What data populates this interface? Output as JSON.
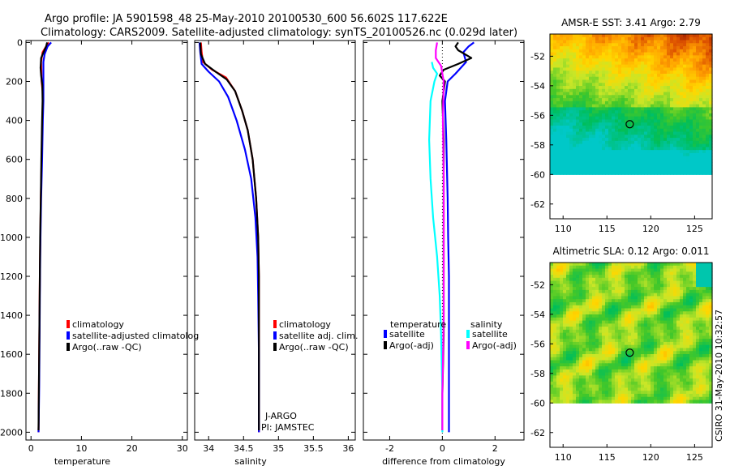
{
  "header": {
    "line1": "Argo profile: JA 5901598_48 25-May-2010 20100530_600 56.602S 117.622E",
    "line2": "Climatology: CARS2009. Satellite-adjusted climatology: synTS_20100526.nc (0.029d later)"
  },
  "chart_data": [
    {
      "type": "line",
      "xlabel": "temperature",
      "ylabel": "",
      "xlim": [
        -1,
        31
      ],
      "ylim": [
        2040,
        -10
      ],
      "xticks": [
        0,
        10,
        20,
        30
      ],
      "yticks": [
        0,
        200,
        400,
        600,
        800,
        1000,
        1200,
        1400,
        1600,
        1800,
        2000
      ],
      "legend": [
        "climatology",
        "satellite-adjusted climatolog",
        "Argo(..raw -QC)"
      ],
      "series": [
        {
          "name": "climatology",
          "color": "#ff0000",
          "x": [
            3.5,
            3.0,
            2.3,
            2.0,
            2.1,
            2.3,
            2.35,
            2.25,
            2.1,
            1.95,
            1.85,
            1.75,
            1.65,
            1.55,
            1.5
          ],
          "y": [
            0,
            20,
            50,
            100,
            200,
            250,
            300,
            400,
            600,
            800,
            1000,
            1200,
            1500,
            1800,
            2000
          ]
        },
        {
          "name": "satellite-adjusted climatology",
          "color": "#0000ff",
          "x": [
            4.0,
            3.3,
            2.7,
            2.45,
            2.45,
            2.45,
            2.35,
            2.2,
            2.0,
            1.88,
            1.78,
            1.7,
            1.6,
            1.5
          ],
          "y": [
            0,
            20,
            60,
            100,
            200,
            300,
            400,
            600,
            800,
            1000,
            1200,
            1500,
            1800,
            2000
          ]
        },
        {
          "name": "Argo(..raw -QC)",
          "color": "#000000",
          "x": [
            3.2,
            3.0,
            2.5,
            2.0,
            1.9,
            2.0,
            2.25,
            2.3,
            2.2,
            2.05,
            1.95,
            1.82,
            1.72,
            1.62,
            1.5
          ],
          "y": [
            0,
            20,
            50,
            80,
            130,
            170,
            220,
            300,
            400,
            600,
            800,
            1000,
            1300,
            1600,
            1990
          ]
        }
      ]
    },
    {
      "type": "line",
      "xlabel": "salinity",
      "ylabel": "",
      "xlim": [
        33.8,
        36.1
      ],
      "ylim": [
        2040,
        -10
      ],
      "xticks": [
        34,
        34.5,
        35,
        35.5,
        36
      ],
      "legend": [
        "climatology",
        "satellite adj. clim.",
        "Argo(..raw -QC)"
      ],
      "annotation": [
        "J-ARGO",
        "PI: JAMSTEC"
      ],
      "series": [
        {
          "name": "climatology",
          "color": "#ff0000",
          "x": [
            33.89,
            33.9,
            33.92,
            34.05,
            34.25,
            34.38,
            34.48,
            34.56,
            34.63,
            34.68,
            34.71,
            34.72,
            34.72,
            34.72,
            34.72
          ],
          "y": [
            0,
            50,
            100,
            140,
            180,
            250,
            350,
            450,
            600,
            800,
            1000,
            1200,
            1400,
            1700,
            2000
          ]
        },
        {
          "name": "satellite adj. clim.",
          "color": "#0000ff",
          "x": [
            33.87,
            33.88,
            33.9,
            34.0,
            34.15,
            34.28,
            34.4,
            34.52,
            34.61,
            34.67,
            34.7,
            34.71,
            34.72,
            34.72
          ],
          "y": [
            0,
            50,
            110,
            150,
            200,
            280,
            400,
            550,
            700,
            900,
            1100,
            1300,
            1600,
            2000
          ]
        },
        {
          "name": "Argo(..raw -QC)",
          "color": "#000000",
          "x": [
            33.88,
            33.89,
            33.95,
            34.1,
            34.26,
            34.38,
            34.48,
            34.56,
            34.63,
            34.68,
            34.71,
            34.72,
            34.72,
            34.72,
            34.72
          ],
          "y": [
            0,
            60,
            110,
            150,
            190,
            250,
            350,
            450,
            600,
            800,
            1000,
            1200,
            1400,
            1700,
            1990
          ]
        }
      ]
    },
    {
      "type": "line",
      "xlabel": "difference from climatology",
      "ylabel": "",
      "xlim": [
        -3.0,
        3.1
      ],
      "ylim": [
        2040,
        -10
      ],
      "xticks": [
        -2,
        0,
        2
      ],
      "legend_titles": [
        "temperature",
        "salinity"
      ],
      "legend": [
        "satellite",
        "Argo(-adj)",
        "satellite",
        "Argo(-adj)"
      ],
      "series": [
        {
          "name": "temperature satellite",
          "color": "#0000ff",
          "x": [
            1.2,
            1.0,
            0.8,
            0.9,
            0.5,
            0.2,
            0.1,
            0.15,
            0.2,
            0.22,
            0.25,
            0.25,
            0.25,
            0.25
          ],
          "y": [
            0,
            20,
            50,
            100,
            160,
            200,
            300,
            500,
            800,
            1000,
            1200,
            1500,
            1800,
            2000
          ]
        },
        {
          "name": "temperature Argo(-adj)",
          "color": "#000000",
          "x": [
            0.6,
            0.5,
            0.6,
            1.1,
            0.6,
            0.05,
            -0.1,
            0.1,
            0.0,
            0.05,
            0.05,
            0.05,
            0.05,
            0.0,
            0.0
          ],
          "y": [
            0,
            20,
            40,
            80,
            110,
            140,
            170,
            200,
            300,
            500,
            800,
            1200,
            1500,
            1800,
            1990
          ]
        },
        {
          "name": "salinity satellite",
          "color": "#00ffff",
          "x": [
            -0.4,
            -0.35,
            -0.2,
            -0.3,
            -0.45,
            -0.5,
            -0.45,
            -0.35,
            -0.2,
            -0.1,
            -0.05,
            0.0,
            0.0
          ],
          "y": [
            100,
            130,
            160,
            200,
            300,
            500,
            700,
            900,
            1100,
            1300,
            1500,
            1800,
            2000
          ]
        },
        {
          "name": "salinity Argo(-adj)",
          "color": "#ff00ff",
          "x": [
            -0.2,
            -0.25,
            -0.25,
            -0.05,
            0.05,
            0.02,
            0.05,
            0.05,
            0.05,
            0.0,
            0.0
          ],
          "y": [
            0,
            40,
            80,
            120,
            200,
            400,
            700,
            1000,
            1400,
            1800,
            1990
          ]
        }
      ]
    },
    {
      "type": "heatmap",
      "title": "AMSR-E SST: 3.41 Argo: 2.79",
      "xlim": [
        108.5,
        127
      ],
      "ylim": [
        -63,
        -50.5
      ],
      "xticks": [
        110,
        115,
        120,
        125
      ],
      "yticks": [
        -52,
        -54,
        -56,
        -58,
        -60,
        -62
      ],
      "marker": {
        "lon": 117.6,
        "lat": -56.6
      }
    },
    {
      "type": "heatmap",
      "title": "Altimetric SLA: 0.12 Argo: 0.011",
      "xlim": [
        108.5,
        127
      ],
      "ylim": [
        -63,
        -50.5
      ],
      "xticks": [
        110,
        115,
        120,
        125
      ],
      "yticks": [
        -52,
        -54,
        -56,
        -58,
        -60,
        -62
      ],
      "marker": {
        "lon": 117.6,
        "lat": -56.6
      }
    }
  ],
  "footer": {
    "stamp": "CSIRO 31-May-2010 10:32:57"
  },
  "colors": {
    "red": "#ff0000",
    "blue": "#0000ff",
    "black": "#000000",
    "cyan": "#00ffff",
    "magenta": "#ff00ff"
  }
}
